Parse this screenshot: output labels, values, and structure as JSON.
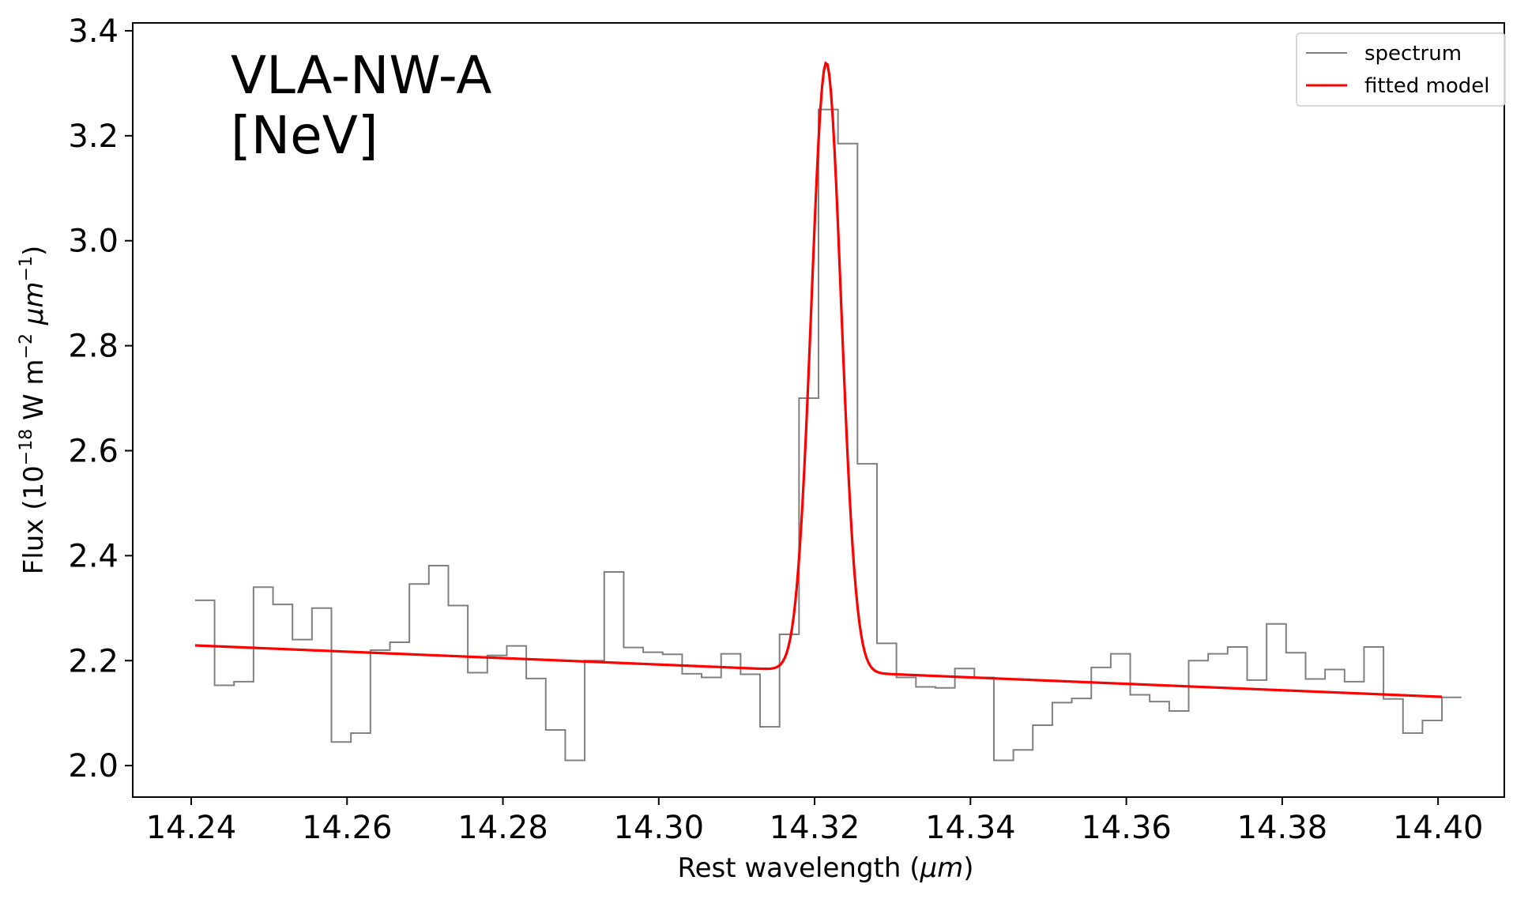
{
  "chart_data": {
    "type": "line",
    "title": "",
    "annotation_lines": [
      "VLA-NW-A",
      "[NeV]"
    ],
    "xlabel_prefix": "Rest wavelength (",
    "xlabel_symbol": "μm",
    "xlabel_suffix": ")",
    "ylabel_main": "Flux (10",
    "ylabel_exp1": "−18",
    "ylabel_mid": " W m",
    "ylabel_exp2": "−2",
    "ylabel_unit": " μm",
    "ylabel_exp3": "−1",
    "ylabel_end": ")",
    "xlim": [
      14.2325,
      14.4085
    ],
    "ylim": [
      1.94,
      3.415
    ],
    "x_ticks": [
      "14.24",
      "14.26",
      "14.28",
      "14.30",
      "14.32",
      "14.34",
      "14.36",
      "14.38",
      "14.40"
    ],
    "y_ticks": [
      "2.0",
      "2.2",
      "2.4",
      "2.6",
      "2.8",
      "3.0",
      "3.2",
      "3.4"
    ],
    "legend": {
      "placement": "top-right",
      "entries": [
        "spectrum",
        "fitted model"
      ]
    },
    "grid": false,
    "colors": {
      "spectrum": "#808080",
      "model": "#ff0000"
    },
    "series": [
      {
        "name": "spectrum",
        "style": "step",
        "bin_width": 0.0025,
        "x_start": 14.2405,
        "values": [
          2.315,
          2.153,
          2.16,
          2.34,
          2.307,
          2.24,
          2.3,
          2.045,
          2.062,
          2.22,
          2.235,
          2.346,
          2.381,
          2.305,
          2.177,
          2.21,
          2.228,
          2.166,
          2.068,
          2.01,
          2.2,
          2.369,
          2.225,
          2.216,
          2.212,
          2.175,
          2.168,
          2.213,
          2.174,
          2.074,
          2.25,
          2.7,
          3.25,
          3.185,
          2.575,
          2.233,
          2.168,
          2.15,
          2.148,
          2.185,
          2.168,
          2.01,
          2.03,
          2.077,
          2.12,
          2.128,
          2.187,
          2.213,
          2.135,
          2.122,
          2.104,
          2.2,
          2.213,
          2.226,
          2.163,
          2.27,
          2.215,
          2.165,
          2.183,
          2.16,
          2.226,
          2.127,
          2.062,
          2.086,
          2.13
        ]
      },
      {
        "name": "fitted model",
        "style": "line",
        "model": {
          "continuum_x": [
            14.2405,
            14.4005
          ],
          "continuum_y": [
            2.229,
            2.131
          ],
          "peak_center": 14.3215,
          "peak_amplitude": 1.16,
          "peak_sigma": 0.0019
        }
      }
    ]
  }
}
